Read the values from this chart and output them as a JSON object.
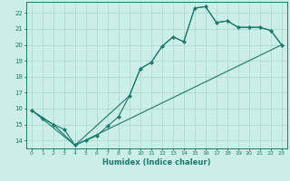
{
  "title": "",
  "xlabel": "Humidex (Indice chaleur)",
  "bg_color": "#cceee8",
  "grid_color": "#aad4cc",
  "line_color": "#1a7a6a",
  "xlim": [
    -0.5,
    23.5
  ],
  "ylim": [
    13.5,
    22.7
  ],
  "xticks": [
    0,
    1,
    2,
    3,
    4,
    5,
    6,
    7,
    8,
    9,
    10,
    11,
    12,
    13,
    14,
    15,
    16,
    17,
    18,
    19,
    20,
    21,
    22,
    23
  ],
  "yticks": [
    14,
    15,
    16,
    17,
    18,
    19,
    20,
    21,
    22
  ],
  "line1_x": [
    0,
    1,
    2,
    3,
    4,
    5,
    6,
    7,
    8,
    9,
    10,
    11,
    12,
    13,
    14,
    15,
    16,
    17,
    18,
    19,
    20,
    21,
    22,
    23
  ],
  "line1_y": [
    15.9,
    15.4,
    15.0,
    14.7,
    13.7,
    14.0,
    14.3,
    14.9,
    15.5,
    16.8,
    18.5,
    18.9,
    19.9,
    20.5,
    20.2,
    22.3,
    22.4,
    21.4,
    21.5,
    21.1,
    21.1,
    21.1,
    20.9,
    20.0
  ],
  "line2_x": [
    0,
    2,
    4,
    9,
    10,
    11,
    12,
    13,
    14,
    15,
    16,
    17,
    18,
    19,
    20,
    21,
    22,
    23
  ],
  "line2_y": [
    15.9,
    15.0,
    13.7,
    16.8,
    18.5,
    18.9,
    19.9,
    20.5,
    20.2,
    22.3,
    22.4,
    21.4,
    21.5,
    21.1,
    21.1,
    21.1,
    20.9,
    20.0
  ],
  "line3_x": [
    0,
    4,
    23
  ],
  "line3_y": [
    15.9,
    13.7,
    20.0
  ]
}
